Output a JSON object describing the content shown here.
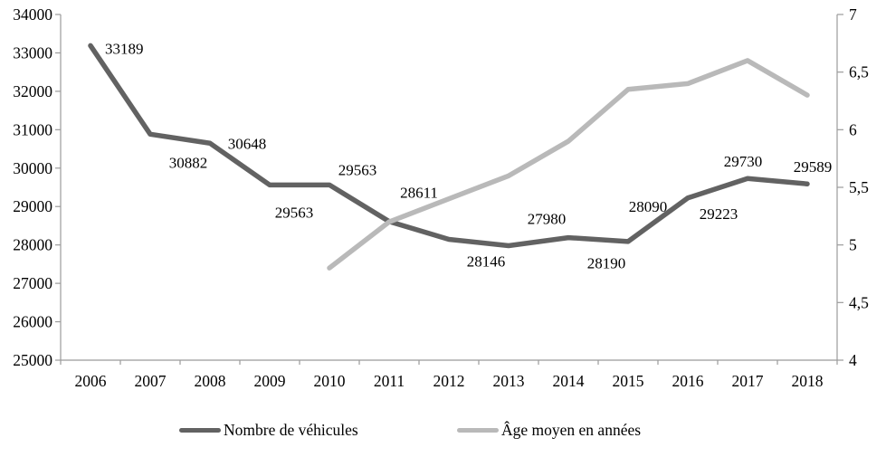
{
  "chart_data": {
    "type": "line",
    "title": "",
    "categories": [
      "2006",
      "2007",
      "2008",
      "2009",
      "2010",
      "2011",
      "2012",
      "2013",
      "2014",
      "2015",
      "2016",
      "2017",
      "2018"
    ],
    "series": [
      {
        "name": "Nombre de véhicules",
        "y_axis": "left",
        "color": "#626262",
        "values": [
          33189,
          30882,
          30648,
          29563,
          29563,
          28611,
          28146,
          27980,
          28190,
          28090,
          29223,
          29730,
          29589
        ],
        "data_labels": [
          "33189",
          "30882",
          "30648",
          "29563",
          "29563",
          "28611",
          "28146",
          "27980",
          "28190",
          "28090",
          "29223",
          "29730",
          "29589"
        ]
      },
      {
        "name": "Âge moyen en années",
        "y_axis": "right",
        "color": "#b9b9b9",
        "values": [
          null,
          null,
          null,
          null,
          4.8,
          5.2,
          5.4,
          5.6,
          5.9,
          6.35,
          6.4,
          6.6,
          6.3
        ],
        "data_labels": []
      }
    ],
    "left_axis": {
      "min": 25000,
      "max": 34000,
      "step": 1000,
      "tick_labels": [
        "25000",
        "26000",
        "27000",
        "28000",
        "29000",
        "30000",
        "31000",
        "32000",
        "33000",
        "34000"
      ]
    },
    "right_axis": {
      "min": 4,
      "max": 7,
      "step": 0.5,
      "tick_labels": [
        "4",
        "4,5",
        "5",
        "5,5",
        "6",
        "6,5",
        "7"
      ]
    },
    "x_axis_tick_labels": [
      "2006",
      "2007",
      "2008",
      "2009",
      "2010",
      "2011",
      "2012",
      "2013",
      "2014",
      "2015",
      "2016",
      "2017",
      "2018"
    ],
    "legend": {
      "position": "bottom",
      "entries": [
        "Nombre de véhicules",
        "Âge moyen en années"
      ]
    },
    "grid": "off",
    "colors": {
      "axis_line": "#9b9b9b",
      "text": "#000000",
      "background": "#ffffff"
    }
  }
}
